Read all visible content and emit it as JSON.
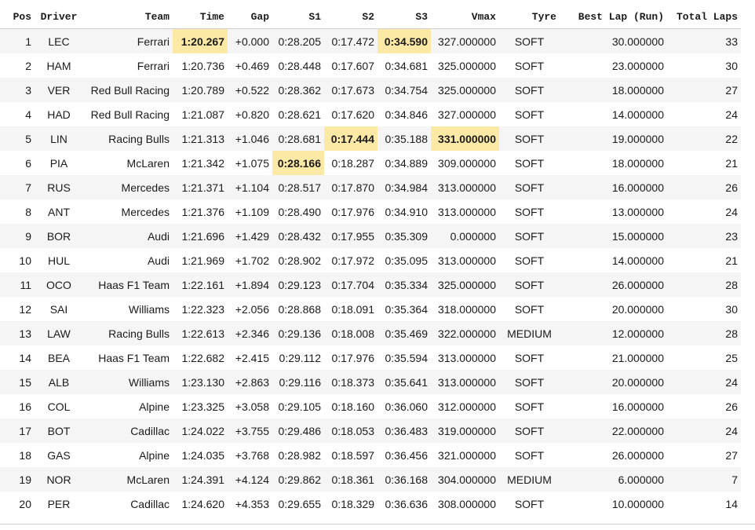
{
  "table": {
    "columns": [
      "Pos",
      "Driver",
      "Team",
      "Time",
      "Gap",
      "S1",
      "S2",
      "S3",
      "Vmax",
      "Tyre",
      "Best Lap (Run)",
      "Total Laps"
    ],
    "rows": [
      {
        "pos": "1",
        "driver": "LEC",
        "team": "Ferrari",
        "time": "1:20.267",
        "gap": "+0.000",
        "s1": "0:28.205",
        "s2": "0:17.472",
        "s3": "0:34.590",
        "vmax": "327.000000",
        "tyre": "SOFT",
        "best_lap": "30.000000",
        "total_laps": "33",
        "highlight": [
          "time",
          "s3"
        ]
      },
      {
        "pos": "2",
        "driver": "HAM",
        "team": "Ferrari",
        "time": "1:20.736",
        "gap": "+0.469",
        "s1": "0:28.448",
        "s2": "0:17.607",
        "s3": "0:34.681",
        "vmax": "325.000000",
        "tyre": "SOFT",
        "best_lap": "23.000000",
        "total_laps": "30",
        "highlight": []
      },
      {
        "pos": "3",
        "driver": "VER",
        "team": "Red Bull Racing",
        "time": "1:20.789",
        "gap": "+0.522",
        "s1": "0:28.362",
        "s2": "0:17.673",
        "s3": "0:34.754",
        "vmax": "325.000000",
        "tyre": "SOFT",
        "best_lap": "18.000000",
        "total_laps": "27",
        "highlight": []
      },
      {
        "pos": "4",
        "driver": "HAD",
        "team": "Red Bull Racing",
        "time": "1:21.087",
        "gap": "+0.820",
        "s1": "0:28.621",
        "s2": "0:17.620",
        "s3": "0:34.846",
        "vmax": "327.000000",
        "tyre": "SOFT",
        "best_lap": "14.000000",
        "total_laps": "24",
        "highlight": []
      },
      {
        "pos": "5",
        "driver": "LIN",
        "team": "Racing Bulls",
        "time": "1:21.313",
        "gap": "+1.046",
        "s1": "0:28.681",
        "s2": "0:17.444",
        "s3": "0:35.188",
        "vmax": "331.000000",
        "tyre": "SOFT",
        "best_lap": "19.000000",
        "total_laps": "22",
        "highlight": [
          "s2",
          "vmax"
        ]
      },
      {
        "pos": "6",
        "driver": "PIA",
        "team": "McLaren",
        "time": "1:21.342",
        "gap": "+1.075",
        "s1": "0:28.166",
        "s2": "0:18.287",
        "s3": "0:34.889",
        "vmax": "309.000000",
        "tyre": "SOFT",
        "best_lap": "18.000000",
        "total_laps": "21",
        "highlight": [
          "s1"
        ]
      },
      {
        "pos": "7",
        "driver": "RUS",
        "team": "Mercedes",
        "time": "1:21.371",
        "gap": "+1.104",
        "s1": "0:28.517",
        "s2": "0:17.870",
        "s3": "0:34.984",
        "vmax": "313.000000",
        "tyre": "SOFT",
        "best_lap": "16.000000",
        "total_laps": "26",
        "highlight": []
      },
      {
        "pos": "8",
        "driver": "ANT",
        "team": "Mercedes",
        "time": "1:21.376",
        "gap": "+1.109",
        "s1": "0:28.490",
        "s2": "0:17.976",
        "s3": "0:34.910",
        "vmax": "313.000000",
        "tyre": "SOFT",
        "best_lap": "13.000000",
        "total_laps": "24",
        "highlight": []
      },
      {
        "pos": "9",
        "driver": "BOR",
        "team": "Audi",
        "time": "1:21.696",
        "gap": "+1.429",
        "s1": "0:28.432",
        "s2": "0:17.955",
        "s3": "0:35.309",
        "vmax": "0.000000",
        "tyre": "SOFT",
        "best_lap": "15.000000",
        "total_laps": "23",
        "highlight": []
      },
      {
        "pos": "10",
        "driver": "HUL",
        "team": "Audi",
        "time": "1:21.969",
        "gap": "+1.702",
        "s1": "0:28.902",
        "s2": "0:17.972",
        "s3": "0:35.095",
        "vmax": "313.000000",
        "tyre": "SOFT",
        "best_lap": "14.000000",
        "total_laps": "21",
        "highlight": []
      },
      {
        "pos": "11",
        "driver": "OCO",
        "team": "Haas F1 Team",
        "time": "1:22.161",
        "gap": "+1.894",
        "s1": "0:29.123",
        "s2": "0:17.704",
        "s3": "0:35.334",
        "vmax": "325.000000",
        "tyre": "SOFT",
        "best_lap": "26.000000",
        "total_laps": "28",
        "highlight": []
      },
      {
        "pos": "12",
        "driver": "SAI",
        "team": "Williams",
        "time": "1:22.323",
        "gap": "+2.056",
        "s1": "0:28.868",
        "s2": "0:18.091",
        "s3": "0:35.364",
        "vmax": "318.000000",
        "tyre": "SOFT",
        "best_lap": "20.000000",
        "total_laps": "30",
        "highlight": []
      },
      {
        "pos": "13",
        "driver": "LAW",
        "team": "Racing Bulls",
        "time": "1:22.613",
        "gap": "+2.346",
        "s1": "0:29.136",
        "s2": "0:18.008",
        "s3": "0:35.469",
        "vmax": "322.000000",
        "tyre": "MEDIUM",
        "best_lap": "12.000000",
        "total_laps": "28",
        "highlight": []
      },
      {
        "pos": "14",
        "driver": "BEA",
        "team": "Haas F1 Team",
        "time": "1:22.682",
        "gap": "+2.415",
        "s1": "0:29.112",
        "s2": "0:17.976",
        "s3": "0:35.594",
        "vmax": "313.000000",
        "tyre": "SOFT",
        "best_lap": "21.000000",
        "total_laps": "25",
        "highlight": []
      },
      {
        "pos": "15",
        "driver": "ALB",
        "team": "Williams",
        "time": "1:23.130",
        "gap": "+2.863",
        "s1": "0:29.116",
        "s2": "0:18.373",
        "s3": "0:35.641",
        "vmax": "313.000000",
        "tyre": "SOFT",
        "best_lap": "20.000000",
        "total_laps": "24",
        "highlight": []
      },
      {
        "pos": "16",
        "driver": "COL",
        "team": "Alpine",
        "time": "1:23.325",
        "gap": "+3.058",
        "s1": "0:29.105",
        "s2": "0:18.160",
        "s3": "0:36.060",
        "vmax": "312.000000",
        "tyre": "SOFT",
        "best_lap": "16.000000",
        "total_laps": "26",
        "highlight": []
      },
      {
        "pos": "17",
        "driver": "BOT",
        "team": "Cadillac",
        "time": "1:24.022",
        "gap": "+3.755",
        "s1": "0:29.486",
        "s2": "0:18.053",
        "s3": "0:36.483",
        "vmax": "319.000000",
        "tyre": "SOFT",
        "best_lap": "22.000000",
        "total_laps": "24",
        "highlight": []
      },
      {
        "pos": "18",
        "driver": "GAS",
        "team": "Alpine",
        "time": "1:24.035",
        "gap": "+3.768",
        "s1": "0:28.982",
        "s2": "0:18.597",
        "s3": "0:36.456",
        "vmax": "321.000000",
        "tyre": "SOFT",
        "best_lap": "26.000000",
        "total_laps": "27",
        "highlight": []
      },
      {
        "pos": "19",
        "driver": "NOR",
        "team": "McLaren",
        "time": "1:24.391",
        "gap": "+4.124",
        "s1": "0:29.862",
        "s2": "0:18.361",
        "s3": "0:36.168",
        "vmax": "304.000000",
        "tyre": "MEDIUM",
        "best_lap": "6.000000",
        "total_laps": "7",
        "highlight": []
      },
      {
        "pos": "20",
        "driver": "PER",
        "team": "Cadillac",
        "time": "1:24.620",
        "gap": "+4.353",
        "s1": "0:29.655",
        "s2": "0:18.329",
        "s3": "0:36.636",
        "vmax": "308.000000",
        "tyre": "SOFT",
        "best_lap": "10.000000",
        "total_laps": "14",
        "highlight": []
      }
    ]
  },
  "colors": {
    "highlight": "#fde9a6",
    "row_stripe": "#f5f5f5",
    "text": "#1a1a1a"
  }
}
